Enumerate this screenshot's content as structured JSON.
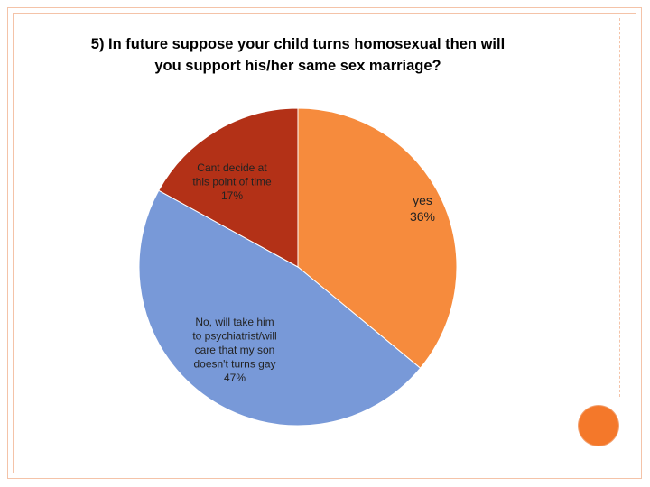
{
  "title_lines": [
    "5)  In future suppose your child turns homosexual then will",
    "you support his/her same sex marriage?"
  ],
  "colors": {
    "frame": "#f4c3a8",
    "accent_dot": "#f4782a"
  },
  "chart_data": {
    "type": "pie",
    "title": "5)  In future suppose your child turns homosexual then will you support his/her same sex marriage?",
    "slices": [
      {
        "label_lines": [
          "yes",
          "36%"
        ],
        "value": 36,
        "color": "#f68b3d"
      },
      {
        "label_lines": [
          "No, will take him",
          "to psychiatrist/will",
          "care that my son",
          "doesn't turns gay",
          "47%"
        ],
        "value": 47,
        "color": "#7899d8"
      },
      {
        "label_lines": [
          "Cant decide at",
          "this point of time",
          "17%"
        ],
        "value": 17,
        "color": "#b33117"
      }
    ],
    "start_angle_deg": 0,
    "direction": "clockwise",
    "legend": "none"
  }
}
